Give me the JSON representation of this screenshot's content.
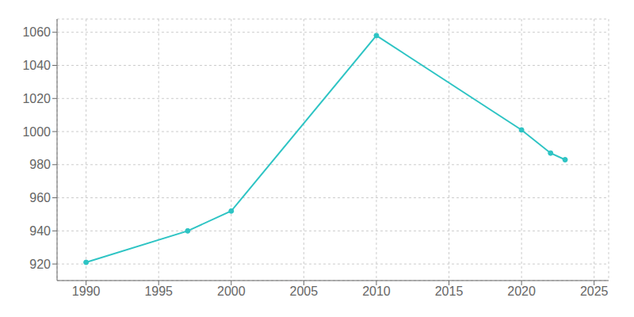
{
  "chart_data": {
    "type": "line",
    "x": [
      1990,
      1997,
      2000,
      2010,
      2020,
      2022,
      2023
    ],
    "values": [
      921,
      940,
      952,
      1058,
      1001,
      987,
      983
    ],
    "color": "#2ec4c4",
    "marker": "circle",
    "xlim": [
      1988,
      2026
    ],
    "ylim": [
      910,
      1068
    ],
    "xticks": [
      1990,
      1995,
      2000,
      2005,
      2010,
      2015,
      2020,
      2025
    ],
    "yticks": [
      920,
      940,
      960,
      980,
      1000,
      1020,
      1040,
      1060
    ],
    "grid": true
  }
}
